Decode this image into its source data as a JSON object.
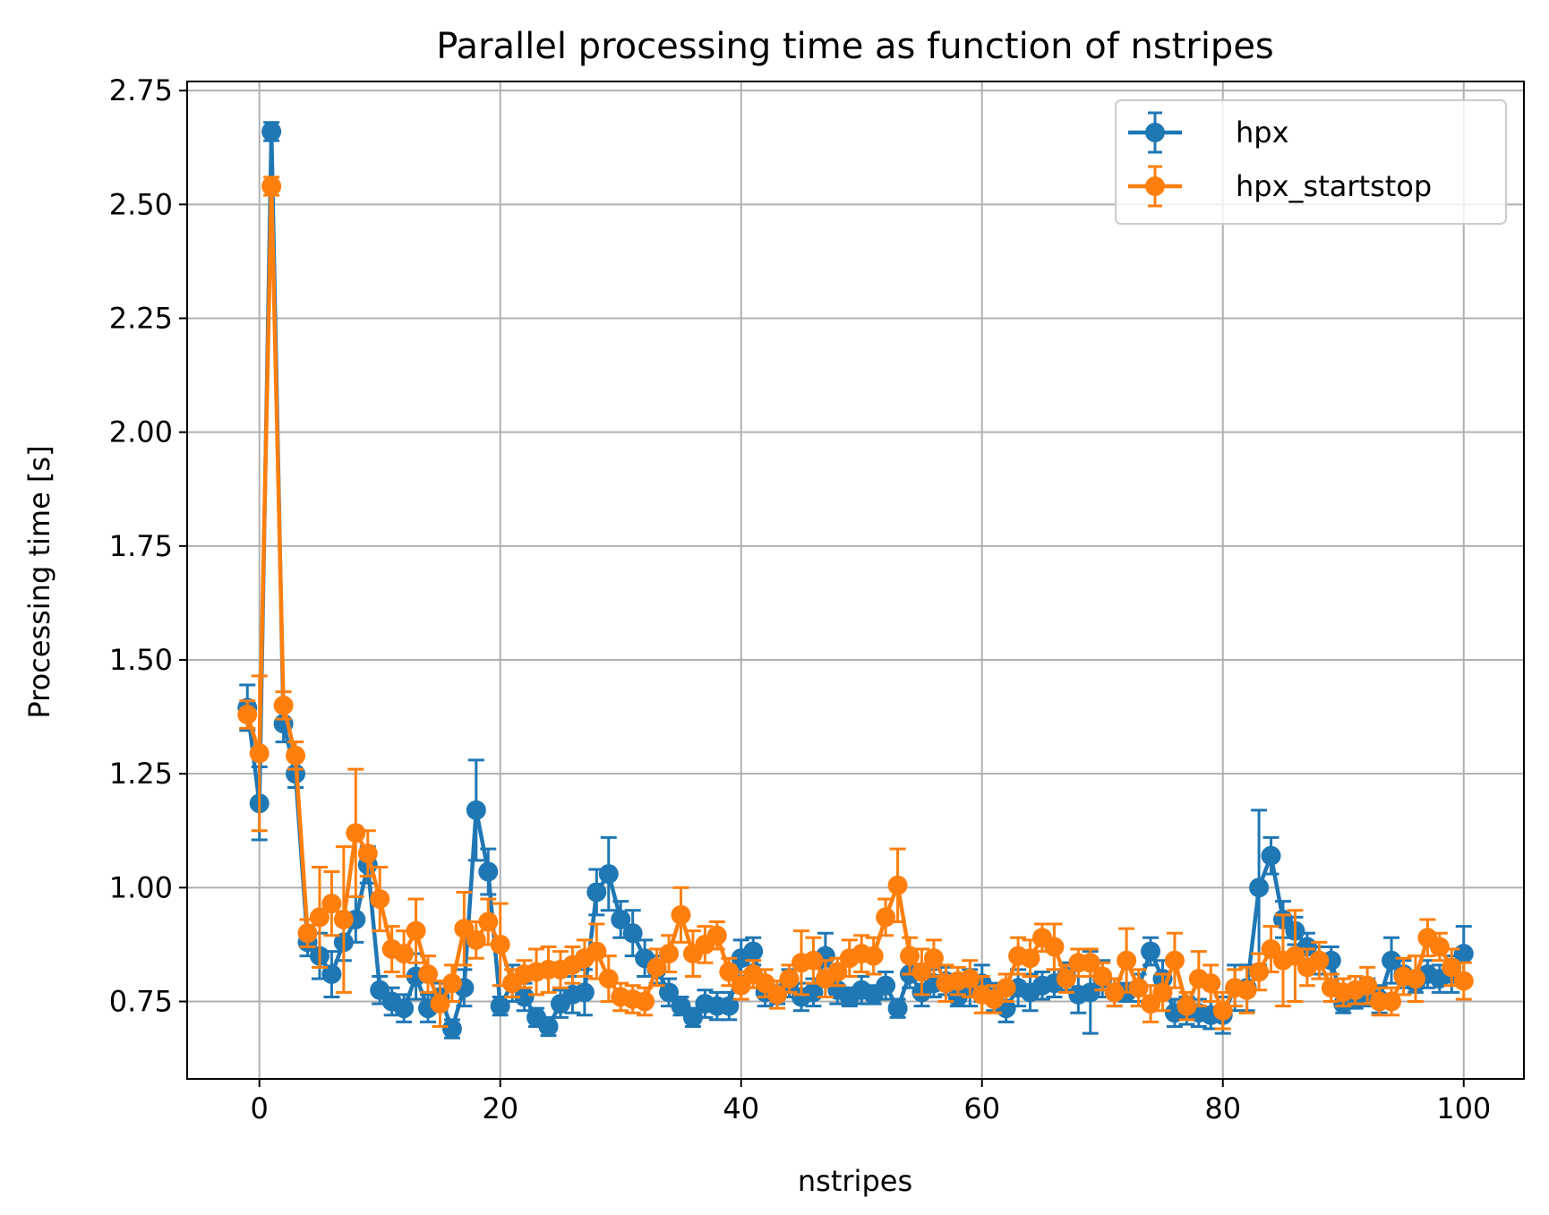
{
  "chart_data": {
    "type": "line",
    "title": "Parallel processing time as function of nstripes",
    "xlabel": "nstripes",
    "ylabel": "Processing time [s]",
    "xlim": [
      -6.0,
      105.0
    ],
    "ylim": [
      0.58,
      2.77
    ],
    "xticks": [
      0,
      20,
      40,
      60,
      80,
      100
    ],
    "xtick_labels": [
      "0",
      "20",
      "40",
      "60",
      "80",
      "100"
    ],
    "yticks": [
      0.75,
      1.0,
      1.25,
      1.5,
      1.75,
      2.0,
      2.25,
      2.5,
      2.75
    ],
    "ytick_labels": [
      "0.75",
      "1.00",
      "1.25",
      "1.50",
      "1.75",
      "2.00",
      "2.25",
      "2.50",
      "2.75"
    ],
    "grid": true,
    "legend_position": "top-right",
    "x": [
      -1,
      0,
      1,
      2,
      3,
      4,
      5,
      6,
      7,
      8,
      9,
      10,
      11,
      12,
      13,
      14,
      15,
      16,
      17,
      18,
      19,
      20,
      21,
      22,
      23,
      24,
      25,
      26,
      27,
      28,
      29,
      30,
      31,
      32,
      33,
      34,
      35,
      36,
      37,
      38,
      39,
      40,
      41,
      42,
      43,
      44,
      45,
      46,
      47,
      48,
      49,
      50,
      51,
      52,
      53,
      54,
      55,
      56,
      57,
      58,
      59,
      60,
      61,
      62,
      63,
      64,
      65,
      66,
      67,
      68,
      69,
      70,
      71,
      72,
      73,
      74,
      75,
      76,
      77,
      78,
      79,
      80,
      81,
      82,
      83,
      84,
      85,
      86,
      87,
      88,
      89,
      90,
      91,
      92,
      93,
      94,
      95,
      96,
      97,
      98,
      99,
      100
    ],
    "series": [
      {
        "name": "hpx",
        "color": "#1f77b4",
        "values": [
          1.395,
          1.185,
          2.66,
          1.36,
          1.25,
          0.88,
          0.85,
          0.81,
          0.88,
          0.93,
          1.05,
          0.775,
          0.75,
          0.735,
          0.805,
          0.735,
          0.76,
          0.69,
          0.78,
          1.17,
          1.035,
          0.74,
          0.79,
          0.76,
          0.715,
          0.695,
          0.745,
          0.765,
          0.77,
          0.99,
          1.03,
          0.93,
          0.9,
          0.845,
          0.82,
          0.77,
          0.74,
          0.715,
          0.745,
          0.74,
          0.74,
          0.845,
          0.86,
          0.77,
          0.765,
          0.79,
          0.76,
          0.77,
          0.85,
          0.775,
          0.76,
          0.775,
          0.765,
          0.785,
          0.735,
          0.81,
          0.77,
          0.79,
          0.795,
          0.76,
          0.78,
          0.79,
          0.76,
          0.735,
          0.78,
          0.77,
          0.785,
          0.79,
          0.805,
          0.765,
          0.77,
          0.8,
          0.77,
          0.77,
          0.78,
          0.86,
          0.8,
          0.725,
          0.73,
          0.725,
          0.72,
          0.72,
          0.78,
          0.78,
          1.0,
          1.07,
          0.93,
          0.905,
          0.87,
          0.84,
          0.84,
          0.745,
          0.755,
          0.77,
          0.755,
          0.84,
          0.81,
          0.79,
          0.81,
          0.8,
          0.81,
          0.855
        ],
        "errors": [
          0.05,
          0.08,
          0.02,
          0.04,
          0.03,
          0.03,
          0.05,
          0.05,
          0.04,
          0.05,
          0.04,
          0.03,
          0.03,
          0.03,
          0.05,
          0.03,
          0.03,
          0.02,
          0.04,
          0.11,
          0.05,
          0.02,
          0.04,
          0.03,
          0.02,
          0.02,
          0.03,
          0.04,
          0.05,
          0.05,
          0.08,
          0.04,
          0.05,
          0.04,
          0.03,
          0.03,
          0.02,
          0.02,
          0.03,
          0.03,
          0.03,
          0.04,
          0.03,
          0.03,
          0.02,
          0.03,
          0.03,
          0.03,
          0.05,
          0.03,
          0.02,
          0.03,
          0.02,
          0.03,
          0.02,
          0.03,
          0.03,
          0.03,
          0.03,
          0.02,
          0.04,
          0.04,
          0.03,
          0.03,
          0.04,
          0.04,
          0.03,
          0.03,
          0.03,
          0.04,
          0.09,
          0.04,
          0.03,
          0.02,
          0.03,
          0.03,
          0.04,
          0.03,
          0.03,
          0.03,
          0.03,
          0.04,
          0.05,
          0.05,
          0.17,
          0.04,
          0.04,
          0.03,
          0.03,
          0.03,
          0.03,
          0.02,
          0.02,
          0.03,
          0.03,
          0.05,
          0.03,
          0.02,
          0.03,
          0.03,
          0.04,
          0.06
        ]
      },
      {
        "name": "hpx_startstop",
        "color": "#ff7f0e",
        "values": [
          1.38,
          1.295,
          2.54,
          1.4,
          1.29,
          0.9,
          0.935,
          0.965,
          0.93,
          1.12,
          1.075,
          0.975,
          0.865,
          0.855,
          0.905,
          0.81,
          0.745,
          0.79,
          0.91,
          0.885,
          0.925,
          0.875,
          0.79,
          0.81,
          0.815,
          0.82,
          0.82,
          0.83,
          0.845,
          0.86,
          0.8,
          0.76,
          0.755,
          0.75,
          0.825,
          0.855,
          0.94,
          0.855,
          0.875,
          0.895,
          0.815,
          0.785,
          0.81,
          0.79,
          0.765,
          0.8,
          0.835,
          0.84,
          0.8,
          0.815,
          0.845,
          0.855,
          0.85,
          0.935,
          1.005,
          0.85,
          0.815,
          0.845,
          0.79,
          0.795,
          0.8,
          0.765,
          0.755,
          0.78,
          0.85,
          0.845,
          0.89,
          0.87,
          0.8,
          0.835,
          0.835,
          0.805,
          0.77,
          0.84,
          0.78,
          0.745,
          0.77,
          0.84,
          0.74,
          0.8,
          0.79,
          0.73,
          0.78,
          0.775,
          0.815,
          0.865,
          0.84,
          0.85,
          0.825,
          0.84,
          0.78,
          0.77,
          0.775,
          0.785,
          0.75,
          0.75,
          0.805,
          0.8,
          0.89,
          0.87,
          0.825,
          0.795
        ],
        "errors": [
          0.03,
          0.17,
          0.02,
          0.03,
          0.03,
          0.03,
          0.11,
          0.07,
          0.16,
          0.14,
          0.05,
          0.07,
          0.05,
          0.05,
          0.07,
          0.04,
          0.05,
          0.04,
          0.08,
          0.04,
          0.05,
          0.09,
          0.03,
          0.03,
          0.05,
          0.05,
          0.04,
          0.04,
          0.04,
          0.06,
          0.05,
          0.03,
          0.03,
          0.03,
          0.04,
          0.04,
          0.06,
          0.05,
          0.04,
          0.03,
          0.03,
          0.03,
          0.03,
          0.03,
          0.03,
          0.03,
          0.07,
          0.05,
          0.04,
          0.03,
          0.04,
          0.04,
          0.04,
          0.04,
          0.08,
          0.04,
          0.05,
          0.04,
          0.04,
          0.03,
          0.04,
          0.04,
          0.03,
          0.03,
          0.04,
          0.04,
          0.03,
          0.05,
          0.03,
          0.03,
          0.03,
          0.03,
          0.03,
          0.07,
          0.04,
          0.04,
          0.04,
          0.06,
          0.03,
          0.06,
          0.04,
          0.04,
          0.04,
          0.05,
          0.04,
          0.05,
          0.1,
          0.1,
          0.04,
          0.04,
          0.03,
          0.03,
          0.03,
          0.04,
          0.03,
          0.03,
          0.04,
          0.05,
          0.04,
          0.03,
          0.04,
          0.04
        ]
      }
    ]
  }
}
